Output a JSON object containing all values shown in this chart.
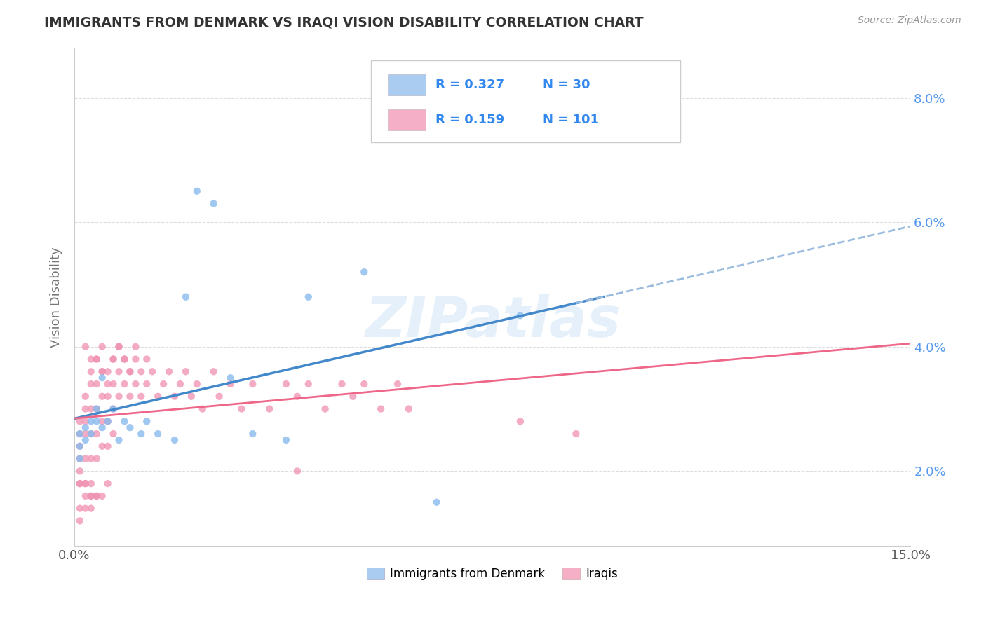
{
  "title": "IMMIGRANTS FROM DENMARK VS IRAQI VISION DISABILITY CORRELATION CHART",
  "source": "Source: ZipAtlas.com",
  "watermark": "ZIPatlas",
  "ylabel_label": "Vision Disability",
  "xlim": [
    0.0,
    0.15
  ],
  "ylim": [
    0.008,
    0.088
  ],
  "yticks": [
    0.02,
    0.04,
    0.06,
    0.08
  ],
  "ytick_labels": [
    "2.0%",
    "4.0%",
    "6.0%",
    "8.0%"
  ],
  "xticks": [
    0.0,
    0.15
  ],
  "xtick_labels": [
    "0.0%",
    "15.0%"
  ],
  "legend_color1": "#aaccf0",
  "legend_color2": "#f5b0c8",
  "scatter_color_denmark": "#88bbee",
  "scatter_color_iraq": "#f090b0",
  "line_color_denmark": "#4488cc",
  "line_color_iraq": "#ee6688",
  "dashed_line_color": "#99bbdd",
  "bottom_legend_denmark": "Immigrants from Denmark",
  "bottom_legend_iraq": "Iraqis",
  "denmark_x": [
    0.001,
    0.001,
    0.001,
    0.002,
    0.002,
    0.003,
    0.003,
    0.004,
    0.004,
    0.005,
    0.005,
    0.006,
    0.007,
    0.008,
    0.009,
    0.01,
    0.012,
    0.013,
    0.015,
    0.018,
    0.02,
    0.022,
    0.025,
    0.028,
    0.032,
    0.038,
    0.042,
    0.052,
    0.065,
    0.08
  ],
  "denmark_y": [
    0.026,
    0.024,
    0.022,
    0.027,
    0.025,
    0.028,
    0.026,
    0.03,
    0.028,
    0.035,
    0.027,
    0.028,
    0.03,
    0.025,
    0.028,
    0.027,
    0.026,
    0.028,
    0.026,
    0.025,
    0.048,
    0.065,
    0.063,
    0.035,
    0.026,
    0.025,
    0.048,
    0.052,
    0.015,
    0.045
  ],
  "iraq_x": [
    0.001,
    0.001,
    0.001,
    0.001,
    0.001,
    0.001,
    0.002,
    0.002,
    0.002,
    0.002,
    0.002,
    0.002,
    0.003,
    0.003,
    0.003,
    0.003,
    0.003,
    0.003,
    0.004,
    0.004,
    0.004,
    0.004,
    0.004,
    0.005,
    0.005,
    0.005,
    0.005,
    0.005,
    0.006,
    0.006,
    0.006,
    0.006,
    0.007,
    0.007,
    0.007,
    0.007,
    0.008,
    0.008,
    0.008,
    0.009,
    0.009,
    0.01,
    0.01,
    0.011,
    0.011,
    0.012,
    0.012,
    0.013,
    0.013,
    0.014,
    0.015,
    0.016,
    0.017,
    0.018,
    0.019,
    0.02,
    0.021,
    0.022,
    0.023,
    0.025,
    0.026,
    0.028,
    0.03,
    0.032,
    0.035,
    0.038,
    0.04,
    0.042,
    0.045,
    0.048,
    0.05,
    0.052,
    0.055,
    0.058,
    0.002,
    0.003,
    0.004,
    0.005,
    0.006,
    0.007,
    0.008,
    0.009,
    0.01,
    0.011,
    0.001,
    0.002,
    0.003,
    0.004,
    0.001,
    0.002,
    0.001,
    0.002,
    0.003,
    0.003,
    0.004,
    0.005,
    0.006,
    0.08,
    0.06,
    0.04,
    0.09
  ],
  "iraq_y": [
    0.026,
    0.022,
    0.018,
    0.028,
    0.024,
    0.02,
    0.03,
    0.026,
    0.022,
    0.018,
    0.032,
    0.028,
    0.034,
    0.03,
    0.026,
    0.022,
    0.038,
    0.016,
    0.038,
    0.034,
    0.03,
    0.026,
    0.022,
    0.04,
    0.036,
    0.032,
    0.028,
    0.024,
    0.036,
    0.032,
    0.028,
    0.024,
    0.038,
    0.034,
    0.03,
    0.026,
    0.04,
    0.036,
    0.032,
    0.038,
    0.034,
    0.036,
    0.032,
    0.038,
    0.034,
    0.036,
    0.032,
    0.038,
    0.034,
    0.036,
    0.032,
    0.034,
    0.036,
    0.032,
    0.034,
    0.036,
    0.032,
    0.034,
    0.03,
    0.036,
    0.032,
    0.034,
    0.03,
    0.034,
    0.03,
    0.034,
    0.032,
    0.034,
    0.03,
    0.034,
    0.032,
    0.034,
    0.03,
    0.034,
    0.04,
    0.036,
    0.038,
    0.036,
    0.034,
    0.038,
    0.04,
    0.038,
    0.036,
    0.04,
    0.014,
    0.016,
    0.014,
    0.016,
    0.012,
    0.014,
    0.018,
    0.018,
    0.016,
    0.018,
    0.016,
    0.016,
    0.018,
    0.028,
    0.03,
    0.02,
    0.026
  ]
}
